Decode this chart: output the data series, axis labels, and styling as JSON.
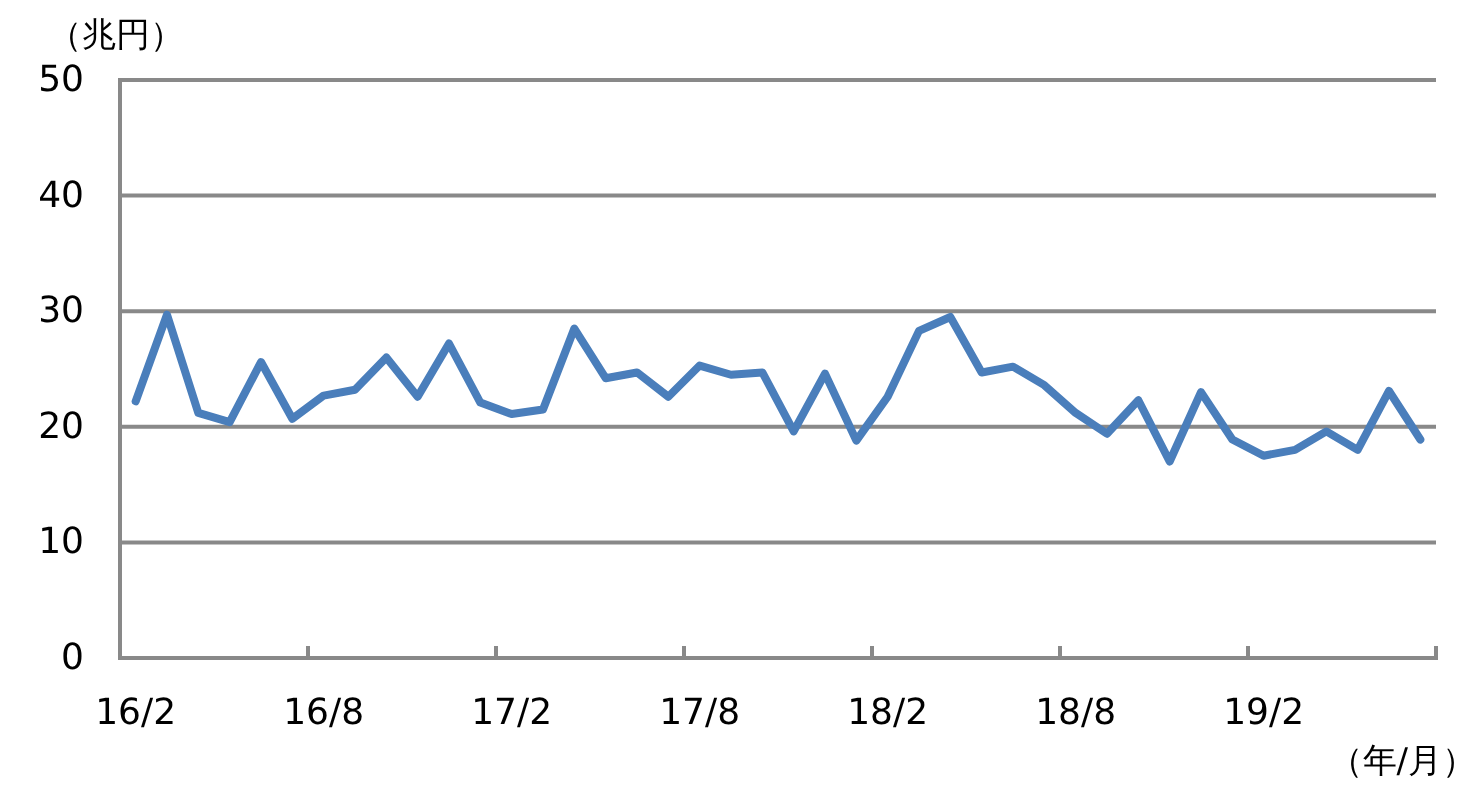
{
  "chart_data": {
    "type": "line",
    "ylabel": "（兆円）",
    "xlabel": "（年/月）",
    "categories": [
      "16/2",
      null,
      null,
      null,
      null,
      null,
      "16/8",
      null,
      null,
      null,
      null,
      null,
      "17/2",
      null,
      null,
      null,
      null,
      null,
      "17/8",
      null,
      null,
      null,
      null,
      null,
      "18/2",
      null,
      null,
      null,
      null,
      null,
      "18/8",
      null,
      null,
      null,
      null,
      null,
      "19/2",
      null,
      null,
      null,
      null,
      null
    ],
    "series": [
      {
        "color": "#4a7ebb",
        "values": [
          22.2,
          29.7,
          21.2,
          20.4,
          25.6,
          20.7,
          22.7,
          23.2,
          26.0,
          22.6,
          27.2,
          22.1,
          21.1,
          21.5,
          28.5,
          24.2,
          24.7,
          22.6,
          25.3,
          24.5,
          24.7,
          19.6,
          24.6,
          18.8,
          22.6,
          28.3,
          29.5,
          24.7,
          25.2,
          23.6,
          21.2,
          19.4,
          22.3,
          17.0,
          23.0,
          18.9,
          17.5,
          18.0,
          19.6,
          18.0,
          23.1,
          18.9
        ]
      }
    ],
    "ylim": [
      0,
      50
    ],
    "yticks": [
      0,
      10,
      20,
      30,
      40,
      50
    ],
    "grid": "y"
  }
}
